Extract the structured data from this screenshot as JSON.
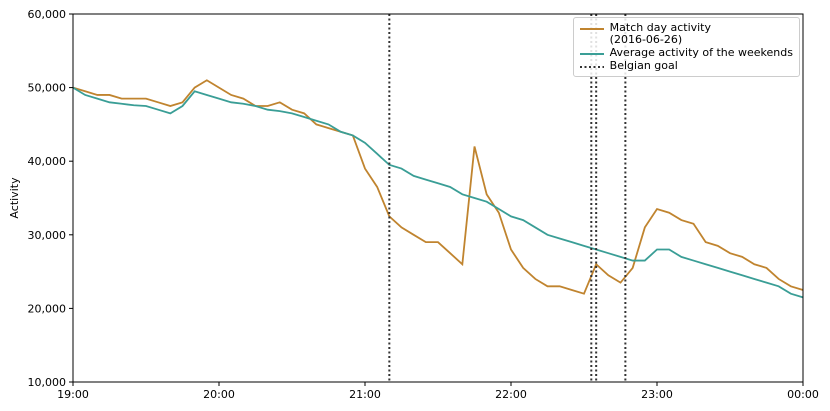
{
  "chart_data": {
    "type": "line",
    "y_label": "Activity",
    "x": [
      "19:00",
      "19:05",
      "19:10",
      "19:15",
      "19:20",
      "19:25",
      "19:30",
      "19:35",
      "19:40",
      "19:45",
      "19:50",
      "19:55",
      "20:00",
      "20:05",
      "20:10",
      "20:15",
      "20:20",
      "20:25",
      "20:30",
      "20:35",
      "20:40",
      "20:45",
      "20:50",
      "20:55",
      "21:00",
      "21:05",
      "21:10",
      "21:15",
      "21:20",
      "21:25",
      "21:30",
      "21:35",
      "21:40",
      "21:45",
      "21:50",
      "21:55",
      "22:00",
      "22:05",
      "22:10",
      "22:15",
      "22:20",
      "22:25",
      "22:30",
      "22:35",
      "22:40",
      "22:45",
      "22:50",
      "22:55",
      "23:00",
      "23:05",
      "23:10",
      "23:15",
      "23:20",
      "23:25",
      "23:30",
      "23:35",
      "23:40",
      "23:45",
      "23:50",
      "23:55",
      "00:00"
    ],
    "series": [
      {
        "name": "Match day activity\n(2016-06-26)",
        "color": "#c0842f",
        "values": [
          50000,
          49500,
          49000,
          49000,
          48500,
          48500,
          48500,
          48000,
          47500,
          48000,
          50000,
          51000,
          50000,
          49000,
          48500,
          47500,
          47500,
          48000,
          47000,
          46500,
          45000,
          44500,
          44000,
          43500,
          39000,
          36500,
          32500,
          31000,
          30000,
          29000,
          29000,
          27500,
          26000,
          42000,
          35500,
          33000,
          28000,
          25500,
          24000,
          23000,
          23000,
          22500,
          22000,
          26000,
          24500,
          23500,
          25500,
          31000,
          33500,
          33000,
          32000,
          31500,
          29000,
          28500,
          27500,
          27000,
          26000,
          25500,
          24000,
          23000,
          22500
        ]
      },
      {
        "name": "Average activity of the weekends",
        "color": "#3a9e96",
        "values": [
          50000,
          49000,
          48500,
          48000,
          47800,
          47600,
          47500,
          47000,
          46500,
          47500,
          49500,
          49000,
          48500,
          48000,
          47800,
          47500,
          47000,
          46800,
          46500,
          46000,
          45500,
          45000,
          44000,
          43500,
          42500,
          41000,
          39500,
          39000,
          38000,
          37500,
          37000,
          36500,
          35500,
          35000,
          34500,
          33500,
          32500,
          32000,
          31000,
          30000,
          29500,
          29000,
          28500,
          28000,
          27500,
          27000,
          26500,
          26500,
          28000,
          28000,
          27000,
          26500,
          26000,
          25500,
          25000,
          24500,
          24000,
          23500,
          23000,
          22000,
          21500
        ]
      }
    ],
    "vlines": {
      "name": "Belgian goal",
      "color": "#333333",
      "x": [
        "21:10",
        "22:33",
        "22:35",
        "22:47"
      ]
    },
    "xlim": [
      "19:00",
      "00:00"
    ],
    "xticks": [
      "19:00",
      "20:00",
      "21:00",
      "22:00",
      "23:00",
      "00:00"
    ],
    "ylim": [
      10000,
      60000
    ],
    "yticks": [
      {
        "value": 10000,
        "label": "10,000"
      },
      {
        "value": 20000,
        "label": "20,000"
      },
      {
        "value": 30000,
        "label": "30,000"
      },
      {
        "value": 40000,
        "label": "40,000"
      },
      {
        "value": 50000,
        "label": "50,000"
      },
      {
        "value": 60000,
        "label": "60,000"
      }
    ],
    "legend": "upper right"
  }
}
